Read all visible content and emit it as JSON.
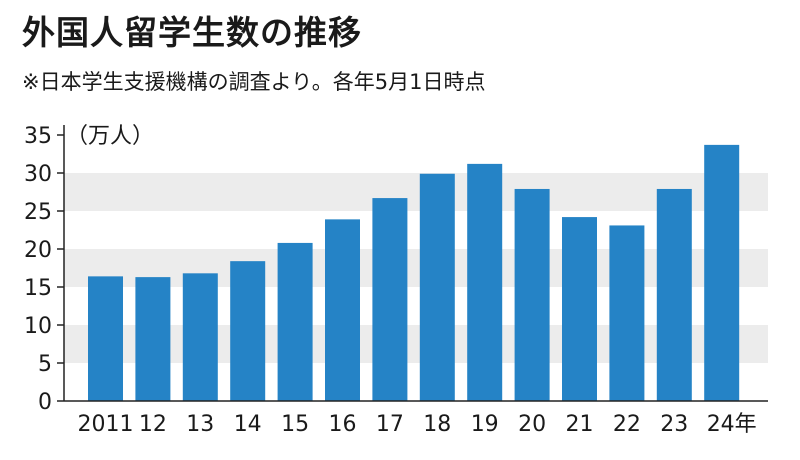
{
  "title": "外国人留学生数の推移",
  "subtitle": "※日本学生支援機構の調査より。各年5月1日時点",
  "colors": {
    "bar": "#2583c6",
    "band": "#ececec",
    "axis": "#222222"
  },
  "chart_data": {
    "type": "bar",
    "title": "外国人留学生数の推移",
    "subtitle": "※日本学生支援機構の調査より。各年5月1日時点",
    "ylabel": "（万人）",
    "xlabel": "",
    "categories": [
      "2011",
      "12",
      "13",
      "14",
      "15",
      "16",
      "17",
      "18",
      "19",
      "20",
      "21",
      "22",
      "23",
      "24年"
    ],
    "values": [
      16.4,
      16.3,
      16.8,
      18.4,
      20.8,
      23.9,
      26.7,
      29.9,
      31.2,
      27.9,
      24.2,
      23.1,
      27.9,
      33.7
    ],
    "ylim": [
      0,
      35
    ],
    "yticks": [
      0,
      5,
      10,
      15,
      20,
      25,
      30,
      35
    ],
    "grid": "alternating horizontal bands",
    "legend": "none"
  }
}
